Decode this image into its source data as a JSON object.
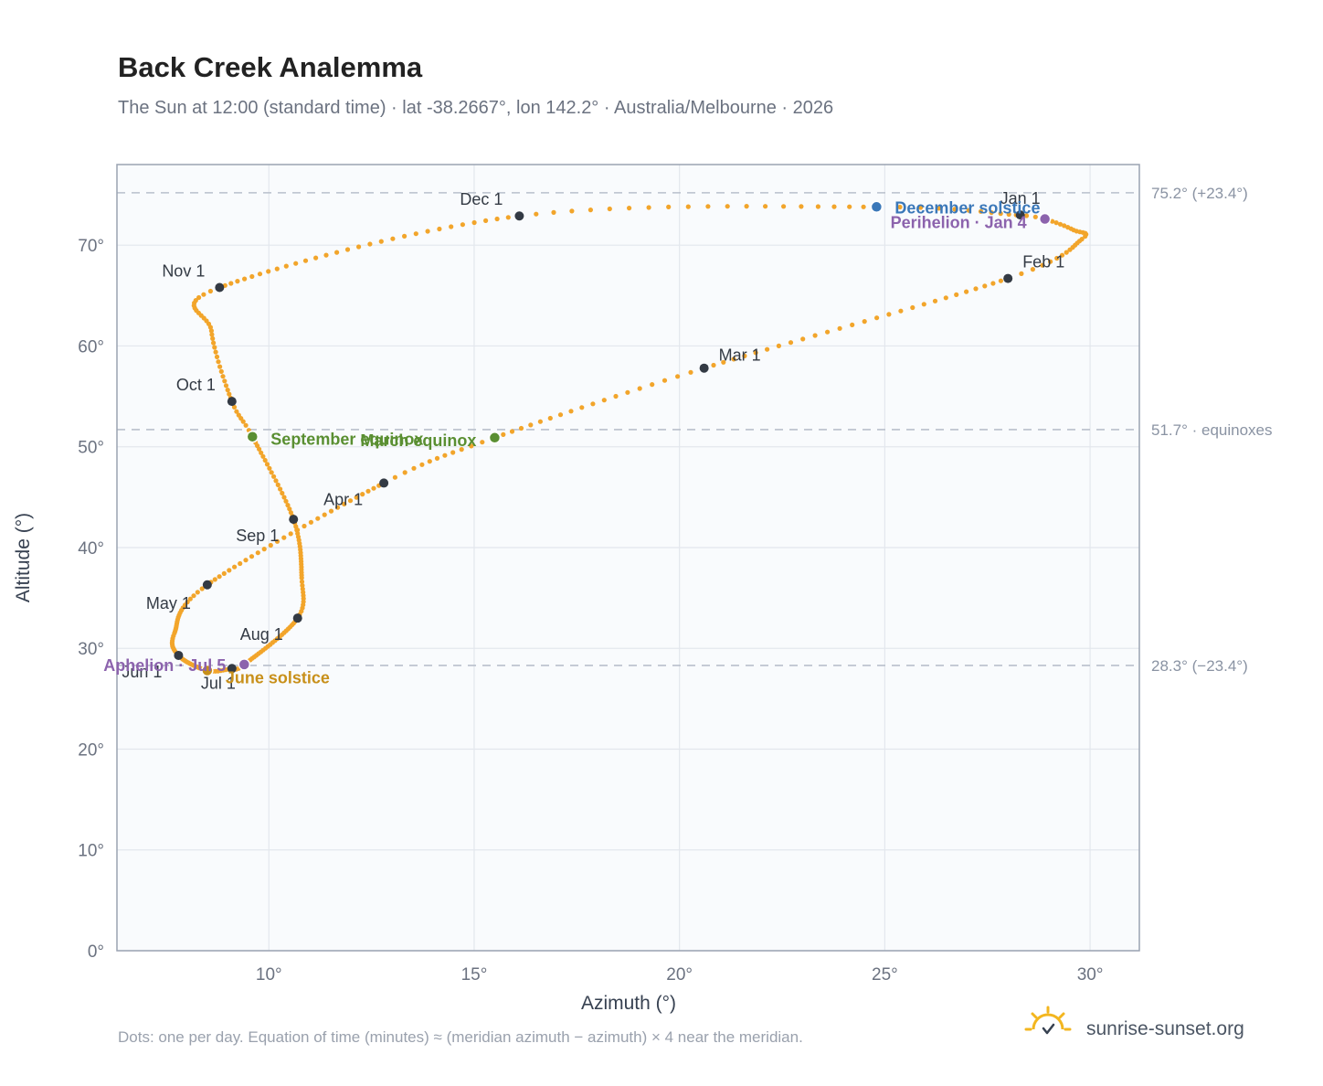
{
  "title": "Back Creek Analemma",
  "subtitle": "The Sun at 12:00 (standard time) · lat -38.2667°, lon 142.2° · Australia/Melbourne · 2026",
  "footnote": "Dots: one per day. Equation of time (minutes) ≈ (meridian azimuth − azimuth) × 4 near the meridian.",
  "brand": "sunrise-sunset.org",
  "colors": {
    "path": "#f2a52b",
    "month_marker": "#333a44",
    "equinox": "#5a8f32",
    "june_solstice": "#c8901a",
    "december_solstice": "#3b78b9",
    "apsis": "#8c63ad",
    "brand_sun": "#f3b61f",
    "plot_bg": "#f9fbfd"
  },
  "chart_data": {
    "type": "scatter",
    "xlabel": "Azimuth (°)",
    "ylabel": "Altitude (°)",
    "xlim": [
      6.3,
      31.2
    ],
    "ylim": [
      0,
      78
    ],
    "xticks": [
      10,
      15,
      20,
      25,
      30
    ],
    "xtick_labels": [
      "10°",
      "15°",
      "20°",
      "25°",
      "30°"
    ],
    "yticks": [
      0,
      10,
      20,
      30,
      40,
      50,
      60,
      70
    ],
    "ytick_labels": [
      "0°",
      "10°",
      "20°",
      "30°",
      "40°",
      "50°",
      "60°",
      "70°"
    ],
    "grid": true,
    "reference_lines": [
      {
        "altitude": 75.2,
        "label": "75.2° (+23.4°)"
      },
      {
        "altitude": 51.7,
        "label": "51.7° · equinoxes"
      },
      {
        "altitude": 28.3,
        "label": "28.3° (−23.4°)"
      }
    ],
    "month_markers": [
      {
        "label": "Jan 1",
        "az": 28.3,
        "alt": 73.0
      },
      {
        "label": "Feb 1",
        "az": 28.0,
        "alt": 66.7
      },
      {
        "label": "Mar 1",
        "az": 20.6,
        "alt": 57.8
      },
      {
        "label": "Apr 1",
        "az": 12.8,
        "alt": 46.4
      },
      {
        "label": "May 1",
        "az": 8.5,
        "alt": 36.3
      },
      {
        "label": "Jun 1",
        "az": 7.8,
        "alt": 29.3
      },
      {
        "label": "Jul 1",
        "az": 9.1,
        "alt": 28.0
      },
      {
        "label": "Aug 1",
        "az": 10.7,
        "alt": 33.0
      },
      {
        "label": "Sep 1",
        "az": 10.6,
        "alt": 42.8
      },
      {
        "label": "Oct 1",
        "az": 9.1,
        "alt": 54.5
      },
      {
        "label": "Nov 1",
        "az": 8.8,
        "alt": 65.8
      },
      {
        "label": "Dec 1",
        "az": 16.1,
        "alt": 72.9
      }
    ],
    "events": [
      {
        "label": "March equinox",
        "az": 15.5,
        "alt": 50.9,
        "color_key": "equinox"
      },
      {
        "label": "September equinox",
        "az": 9.6,
        "alt": 51.0,
        "color_key": "equinox"
      },
      {
        "label": "June solstice",
        "az": 8.5,
        "alt": 27.8,
        "color_key": "june_solstice"
      },
      {
        "label": "December solstice",
        "az": 24.8,
        "alt": 73.8,
        "color_key": "december_solstice"
      },
      {
        "label": "Aphelion · Jul 5",
        "az": 9.4,
        "alt": 28.4,
        "color_key": "apsis"
      },
      {
        "label": "Perihelion · Jan 4",
        "az": 28.9,
        "alt": 72.6,
        "color_key": "apsis"
      }
    ],
    "path_keypoints": [
      {
        "day": 1,
        "az": 28.3,
        "alt": 73.0
      },
      {
        "day": 4,
        "az": 28.9,
        "alt": 72.6
      },
      {
        "day": 12,
        "az": 29.6,
        "alt": 71.5
      },
      {
        "day": 19,
        "az": 29.8,
        "alt": 70.6
      },
      {
        "day": 32,
        "az": 28.0,
        "alt": 66.7
      },
      {
        "day": 60,
        "az": 20.6,
        "alt": 57.8
      },
      {
        "day": 79,
        "az": 15.5,
        "alt": 50.9
      },
      {
        "day": 91,
        "az": 12.8,
        "alt": 46.4
      },
      {
        "day": 121,
        "az": 8.5,
        "alt": 36.3
      },
      {
        "day": 140,
        "az": 7.7,
        "alt": 31.5
      },
      {
        "day": 152,
        "az": 7.8,
        "alt": 29.3
      },
      {
        "day": 172,
        "az": 8.5,
        "alt": 27.8
      },
      {
        "day": 182,
        "az": 9.1,
        "alt": 28.0
      },
      {
        "day": 186,
        "az": 9.4,
        "alt": 28.4
      },
      {
        "day": 213,
        "az": 10.7,
        "alt": 33.0
      },
      {
        "day": 225,
        "az": 10.8,
        "alt": 37.0
      },
      {
        "day": 244,
        "az": 10.6,
        "alt": 42.8
      },
      {
        "day": 266,
        "az": 9.6,
        "alt": 51.0
      },
      {
        "day": 274,
        "az": 9.1,
        "alt": 54.5
      },
      {
        "day": 290,
        "az": 8.6,
        "alt": 61.5
      },
      {
        "day": 305,
        "az": 8.8,
        "alt": 65.8
      },
      {
        "day": 335,
        "az": 16.1,
        "alt": 72.9
      },
      {
        "day": 355,
        "az": 24.8,
        "alt": 73.8
      },
      {
        "day": 365,
        "az": 28.2,
        "alt": 73.0
      }
    ]
  }
}
